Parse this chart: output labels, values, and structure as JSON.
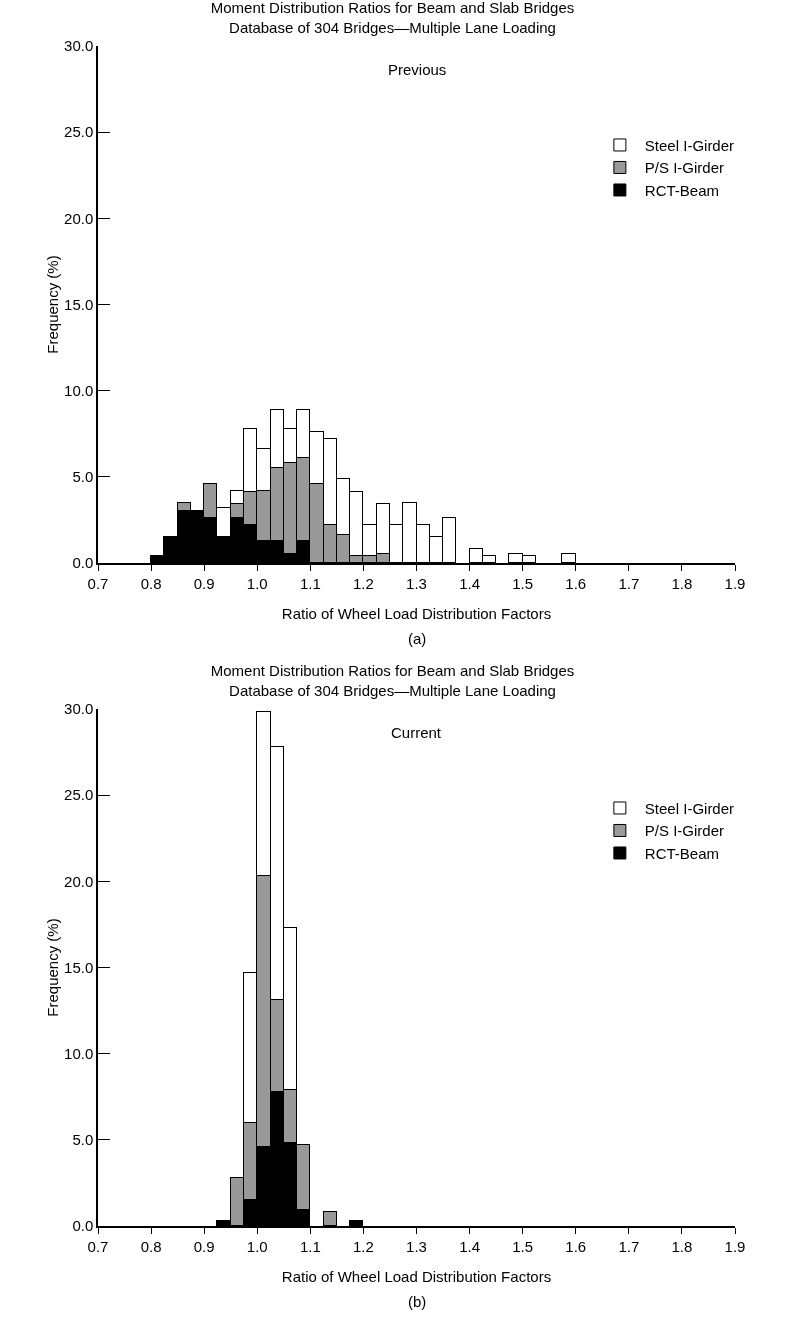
{
  "chart_data": [
    {
      "type": "bar",
      "title": "Moment Distribution Ratios for Beam and Slab Bridges\nDatabase of 304 Bridges—Multiple Lane Loading",
      "subtitle": "Previous",
      "xlabel": "Ratio of Wheel Load Distribution Factors",
      "ylabel": "Frequency (%)",
      "annotations": [
        "(a)"
      ],
      "x": [
        0.8125,
        0.8375,
        0.8625,
        0.8875,
        0.9125,
        0.9375,
        0.9625,
        0.9875,
        1.0125,
        1.0375,
        1.0625,
        1.0875,
        1.1125,
        1.1375,
        1.1625,
        1.1875,
        1.2125,
        1.2375,
        1.2625,
        1.2875,
        1.3125,
        1.3375,
        1.3625,
        1.3875,
        1.4125,
        1.4375,
        1.4625,
        1.4875,
        1.5125,
        1.5375,
        1.5625,
        1.5875
      ],
      "series": [
        {
          "name": "RCT-Beam",
          "color": "#000000",
          "values": [
            0.4,
            1.5,
            3.0,
            3.0,
            2.6,
            1.5,
            2.6,
            2.2,
            1.3,
            1.3,
            0.5,
            1.3,
            null,
            null,
            null,
            null,
            null,
            null,
            null,
            null,
            null,
            null,
            null,
            null,
            null,
            null,
            null,
            null,
            null,
            null,
            null,
            null
          ]
        },
        {
          "name": "P/S I-Girder",
          "color": "#999999",
          "values": [
            null,
            null,
            0.5,
            null,
            2.0,
            null,
            0.8,
            1.9,
            2.9,
            4.2,
            5.3,
            4.8,
            4.6,
            2.2,
            1.6,
            0.4,
            0.4,
            0.5,
            null,
            null,
            null,
            null,
            null,
            null,
            null,
            null,
            null,
            null,
            null,
            null,
            null,
            null
          ]
        },
        {
          "name": "Steel I-Girder",
          "color": "#ffffff",
          "values": [
            null,
            null,
            null,
            null,
            null,
            1.7,
            0.8,
            3.7,
            2.4,
            3.4,
            2.0,
            2.8,
            3.0,
            5.0,
            3.3,
            3.7,
            1.8,
            2.9,
            2.2,
            3.5,
            2.2,
            1.5,
            2.6,
            null,
            0.8,
            0.4,
            null,
            0.5,
            0.4,
            null,
            null,
            0.5
          ]
        }
      ],
      "stacked": true,
      "xlim": [
        0.7,
        1.9
      ],
      "xticks": [
        0.7,
        0.8,
        0.9,
        {
          "value": 1,
          "label": "1.0"
        },
        1.1,
        1.2,
        1.3,
        1.4,
        1.5,
        1.6,
        1.7,
        1.8,
        1.9
      ],
      "ylim": [
        0,
        30
      ],
      "yticks": [
        {
          "value": 0,
          "label": "0.0"
        },
        {
          "value": 5,
          "label": "5.0"
        },
        {
          "value": 10,
          "label": "10.0"
        },
        {
          "value": 15,
          "label": "15.0"
        },
        {
          "value": 20,
          "label": "20.0"
        },
        {
          "value": 25,
          "label": "25.0"
        },
        {
          "value": 30,
          "label": "30.0"
        }
      ],
      "grid": false,
      "legend": "top right"
    },
    {
      "type": "bar",
      "title": "Moment Distribution Ratios for Beam and Slab Bridges\nDatabase of 304 Bridges—Multiple Lane Loading",
      "subtitle": "Current",
      "xlabel": "Ratio of Wheel Load Distribution Factors",
      "ylabel": "Frequency (%)",
      "annotations": [
        "(b)"
      ],
      "x": [
        0.9375,
        0.9625,
        0.9875,
        1.0125,
        1.0375,
        1.0625,
        1.0875,
        1.1125,
        1.1375,
        1.1625,
        1.1875
      ],
      "series": [
        {
          "name": "RCT-Beam",
          "color": "#000000",
          "values": [
            0.3,
            null,
            1.5,
            4.6,
            7.8,
            4.8,
            0.9,
            null,
            null,
            null,
            0.3
          ]
        },
        {
          "name": "P/S I-Girder",
          "color": "#999999",
          "values": [
            null,
            2.8,
            4.5,
            15.7,
            5.3,
            3.1,
            3.8,
            null,
            0.8,
            null,
            null
          ]
        },
        {
          "name": "Steel I-Girder",
          "color": "#ffffff",
          "values": [
            null,
            null,
            8.7,
            9.5,
            14.7,
            9.4,
            null,
            null,
            null,
            null,
            null
          ]
        }
      ],
      "stacked": true,
      "xlim": [
        0.7,
        1.9
      ],
      "xticks": [
        0.7,
        0.8,
        0.9,
        {
          "value": 1,
          "label": "1.0"
        },
        1.1,
        1.2,
        1.3,
        1.4,
        1.5,
        1.6,
        1.7,
        1.8,
        1.9
      ],
      "ylim": [
        0,
        30
      ],
      "yticks": [
        {
          "value": 0,
          "label": "0.0"
        },
        {
          "value": 5,
          "label": "5.0"
        },
        {
          "value": 10,
          "label": "10.0"
        },
        {
          "value": 15,
          "label": "15.0"
        },
        {
          "value": 20,
          "label": "20.0"
        },
        {
          "value": 25,
          "label": "25.0"
        },
        {
          "value": 30,
          "label": "30.0"
        }
      ],
      "grid": false,
      "legend": "top right"
    }
  ]
}
